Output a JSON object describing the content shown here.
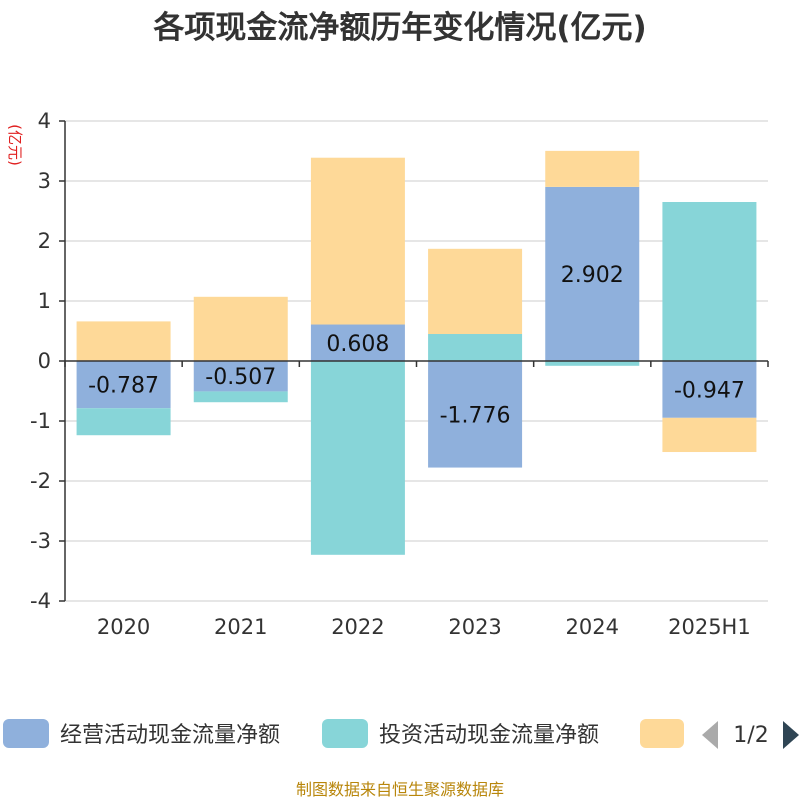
{
  "chart_data": {
    "type": "bar",
    "stacked": true,
    "title": "各项现金流净额历年变化情况(亿元)",
    "ylabel": "(亿元)",
    "xlabel": "",
    "categories": [
      "2020",
      "2021",
      "2022",
      "2023",
      "2024",
      "2025H1"
    ],
    "ylim": [
      -4,
      4
    ],
    "yticks": [
      4,
      3,
      2,
      1,
      0,
      -1,
      -2,
      -3,
      -4
    ],
    "grid": true,
    "series": [
      {
        "name": "经营活动现金流量净额",
        "color": "#8fb0dc",
        "values": [
          -0.787,
          -0.507,
          0.608,
          -1.776,
          2.902,
          -0.947
        ]
      },
      {
        "name": "投资活动现金流量净额",
        "color": "#87d5d8",
        "values": [
          -0.45,
          -0.18,
          -3.23,
          0.45,
          -0.08,
          2.65
        ]
      },
      {
        "name": "",
        "color": "#fed998",
        "values": [
          0.66,
          1.07,
          2.78,
          1.42,
          0.6,
          -0.57
        ]
      }
    ],
    "data_labels": [
      "-0.787",
      "-0.507",
      "0.608",
      "-1.776",
      "2.902",
      "-0.947"
    ],
    "legend_position": "bottom"
  },
  "legend": {
    "page": "1/2",
    "prev_icon": "triangle-left-icon",
    "next_icon": "triangle-right-icon"
  },
  "footer": "制图数据来自恒生聚源数据库"
}
